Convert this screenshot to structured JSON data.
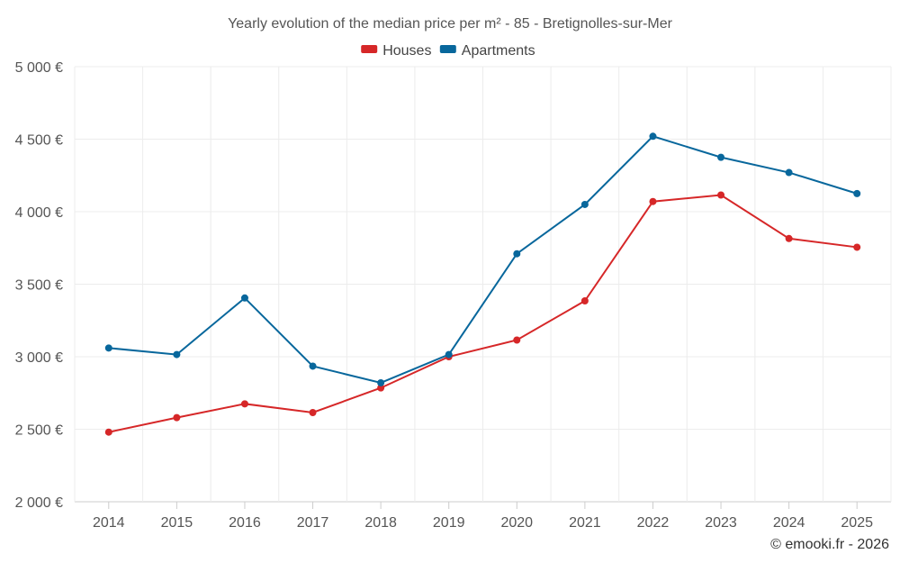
{
  "chart_data": {
    "type": "line",
    "title": "Yearly evolution of the median price per m² - 85 - Bretignolles-sur-Mer",
    "categories": [
      "2014",
      "2015",
      "2016",
      "2017",
      "2018",
      "2019",
      "2020",
      "2021",
      "2022",
      "2023",
      "2024",
      "2025"
    ],
    "series": [
      {
        "name": "Houses",
        "color": "#d62728",
        "values": [
          2480,
          2580,
          2675,
          2615,
          2785,
          3000,
          3115,
          3385,
          4070,
          4115,
          3815,
          3755
        ]
      },
      {
        "name": "Apartments",
        "color": "#08679c",
        "values": [
          3060,
          3015,
          3405,
          2935,
          2820,
          3015,
          3710,
          4050,
          4520,
          4375,
          4270,
          4125
        ]
      }
    ],
    "ylim": [
      2000,
      5000
    ],
    "yticks": [
      2000,
      2500,
      3000,
      3500,
      4000,
      4500,
      5000
    ],
    "ytick_labels": [
      "2 000 €",
      "2 500 €",
      "3 000 €",
      "3 500 €",
      "4 000 €",
      "4 500 €",
      "5 000 €"
    ],
    "xlabel": "",
    "ylabel": "",
    "grid": true,
    "legend_position": "top-center"
  },
  "credit": "© emooki.fr - 2026"
}
